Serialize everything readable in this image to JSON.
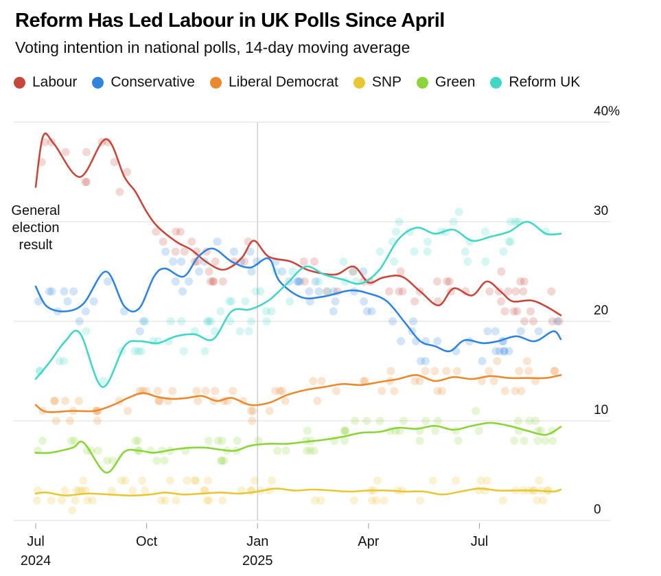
{
  "chart_data": {
    "type": "line",
    "title": "Reform Has Led Labour in UK Polls Since April",
    "subtitle": "Voting intention in national polls, 14-day moving average",
    "ylim": [
      0,
      40
    ],
    "yticks": [
      {
        "value": 0,
        "label": "0"
      },
      {
        "value": 10,
        "label": "10"
      },
      {
        "value": 20,
        "label": "20"
      },
      {
        "value": 30,
        "label": "30"
      },
      {
        "value": 40,
        "label": "40%"
      }
    ],
    "xlim": [
      0,
      14.6
    ],
    "xticks": [
      {
        "value": 0,
        "label": "Jul",
        "sublabel": "2024"
      },
      {
        "value": 3,
        "label": "Oct",
        "sublabel": ""
      },
      {
        "value": 6,
        "label": "Jan",
        "sublabel": "2025"
      },
      {
        "value": 9,
        "label": "Apr",
        "sublabel": ""
      },
      {
        "value": 12,
        "label": "Jul",
        "sublabel": ""
      }
    ],
    "annotation": {
      "x": 0,
      "y": 30,
      "lines": [
        "General",
        "election",
        "result"
      ]
    },
    "x_unit": "months since 1 Jul 2024",
    "series": [
      {
        "name": "Labour",
        "color": "#c7473c",
        "x": [
          0,
          0.2,
          0.5,
          1.2,
          1.9,
          2.4,
          2.7,
          3.0,
          3.3,
          3.8,
          4.2,
          4.6,
          5.0,
          5.3,
          5.6,
          5.9,
          6.3,
          6.9,
          7.4,
          8.1,
          8.6,
          9.0,
          9.4,
          9.9,
          10.4,
          10.9,
          11.3,
          11.8,
          12.2,
          12.6,
          12.9,
          13.4,
          13.8,
          14.2
        ],
        "values": [
          33.5,
          38.6,
          37.8,
          34.5,
          38.3,
          34.5,
          33.0,
          31.0,
          29.5,
          28.0,
          27.2,
          26.0,
          25.2,
          25.5,
          26.5,
          28.1,
          26.5,
          26.0,
          25.1,
          24.7,
          25.5,
          23.9,
          24.4,
          24.5,
          23.0,
          21.6,
          23.3,
          22.6,
          24.0,
          22.9,
          22.0,
          22.1,
          21.5,
          20.6
        ]
      },
      {
        "name": "Conservative",
        "color": "#2f84de",
        "x": [
          0,
          0.3,
          0.8,
          1.3,
          1.9,
          2.4,
          2.8,
          3.2,
          3.5,
          4.0,
          4.4,
          4.8,
          5.3,
          5.8,
          6.3,
          6.6,
          7.2,
          7.8,
          8.5,
          9.0,
          9.5,
          10.0,
          10.4,
          10.8,
          11.2,
          11.6,
          12.1,
          12.5,
          13.0,
          13.5,
          14.0,
          14.2
        ],
        "values": [
          23.5,
          21.5,
          21.0,
          21.8,
          25.0,
          21.5,
          21.3,
          24.5,
          25.3,
          24.5,
          26.5,
          27.3,
          26.0,
          25.4,
          26.3,
          24.0,
          22.4,
          22.5,
          23.1,
          22.8,
          22.0,
          19.8,
          18.0,
          17.5,
          17.0,
          18.1,
          17.8,
          18.0,
          18.5,
          18.0,
          19.0,
          18.2
        ]
      },
      {
        "name": "Liberal Democrat",
        "color": "#e88a2d",
        "x": [
          0,
          0.3,
          1.0,
          1.6,
          2.1,
          2.5,
          2.9,
          3.3,
          3.7,
          4.1,
          4.5,
          4.9,
          5.3,
          5.8,
          6.3,
          6.8,
          7.3,
          7.8,
          8.3,
          8.8,
          9.3,
          9.8,
          10.3,
          10.8,
          11.3,
          11.8,
          12.3,
          12.8,
          13.3,
          13.8,
          14.2
        ],
        "values": [
          11.6,
          10.9,
          11.0,
          11.0,
          11.6,
          12.3,
          12.8,
          12.4,
          12.2,
          12.3,
          12.5,
          12.0,
          12.3,
          11.6,
          11.8,
          12.6,
          13.1,
          13.4,
          13.7,
          13.6,
          13.9,
          14.2,
          14.6,
          14.0,
          14.4,
          14.2,
          14.5,
          14.3,
          14.3,
          14.3,
          14.6
        ]
      },
      {
        "name": "SNP",
        "color": "#e9c634",
        "x": [
          0,
          0.3,
          0.8,
          1.4,
          2.0,
          2.6,
          3.1,
          3.5,
          4.0,
          4.5,
          5.0,
          5.5,
          6.0,
          6.5,
          7.0,
          7.5,
          8.0,
          8.5,
          9.0,
          9.5,
          10.0,
          10.5,
          11.0,
          11.5,
          12.0,
          12.5,
          13.0,
          13.5,
          14.0,
          14.2
        ],
        "values": [
          2.7,
          2.8,
          2.5,
          2.7,
          2.6,
          2.5,
          2.6,
          2.8,
          2.6,
          2.7,
          2.8,
          2.7,
          2.9,
          3.2,
          3.0,
          3.1,
          3.0,
          2.9,
          3.0,
          3.0,
          2.9,
          2.9,
          2.6,
          2.9,
          3.2,
          3.0,
          3.0,
          3.0,
          2.9,
          3.1
        ]
      },
      {
        "name": "Green",
        "color": "#8bd43a",
        "x": [
          0,
          0.4,
          1.0,
          1.3,
          1.9,
          2.4,
          2.8,
          3.2,
          3.7,
          4.2,
          4.6,
          5.0,
          5.4,
          5.8,
          6.3,
          6.8,
          7.3,
          7.8,
          8.3,
          8.8,
          9.3,
          9.8,
          10.3,
          10.8,
          11.3,
          11.8,
          12.3,
          12.8,
          13.3,
          13.8,
          14.2
        ],
        "values": [
          6.8,
          6.8,
          7.3,
          7.8,
          4.8,
          6.9,
          7.0,
          6.8,
          7.1,
          7.3,
          7.3,
          7.1,
          7.0,
          7.5,
          7.7,
          7.7,
          7.9,
          8.1,
          8.4,
          8.8,
          8.9,
          9.3,
          9.2,
          9.5,
          9.1,
          9.5,
          9.8,
          9.5,
          9.0,
          8.6,
          9.4
        ]
      },
      {
        "name": "Reform UK",
        "color": "#41d6c6",
        "x": [
          0,
          0.4,
          0.8,
          1.2,
          1.8,
          2.4,
          2.8,
          3.3,
          3.8,
          4.3,
          4.8,
          5.3,
          5.8,
          6.3,
          6.8,
          7.3,
          7.8,
          8.3,
          8.8,
          9.3,
          9.8,
          10.3,
          10.8,
          11.3,
          11.8,
          12.3,
          12.8,
          13.3,
          13.8,
          14.2
        ],
        "values": [
          14.2,
          16.0,
          18.0,
          18.8,
          13.4,
          17.5,
          18.0,
          17.8,
          18.5,
          18.7,
          18.2,
          21.0,
          21.2,
          22.1,
          23.8,
          25.5,
          24.7,
          24.2,
          23.8,
          25.2,
          28.2,
          29.4,
          28.8,
          29.2,
          28.1,
          28.5,
          29.0,
          30.0,
          28.8,
          28.8
        ]
      }
    ]
  }
}
